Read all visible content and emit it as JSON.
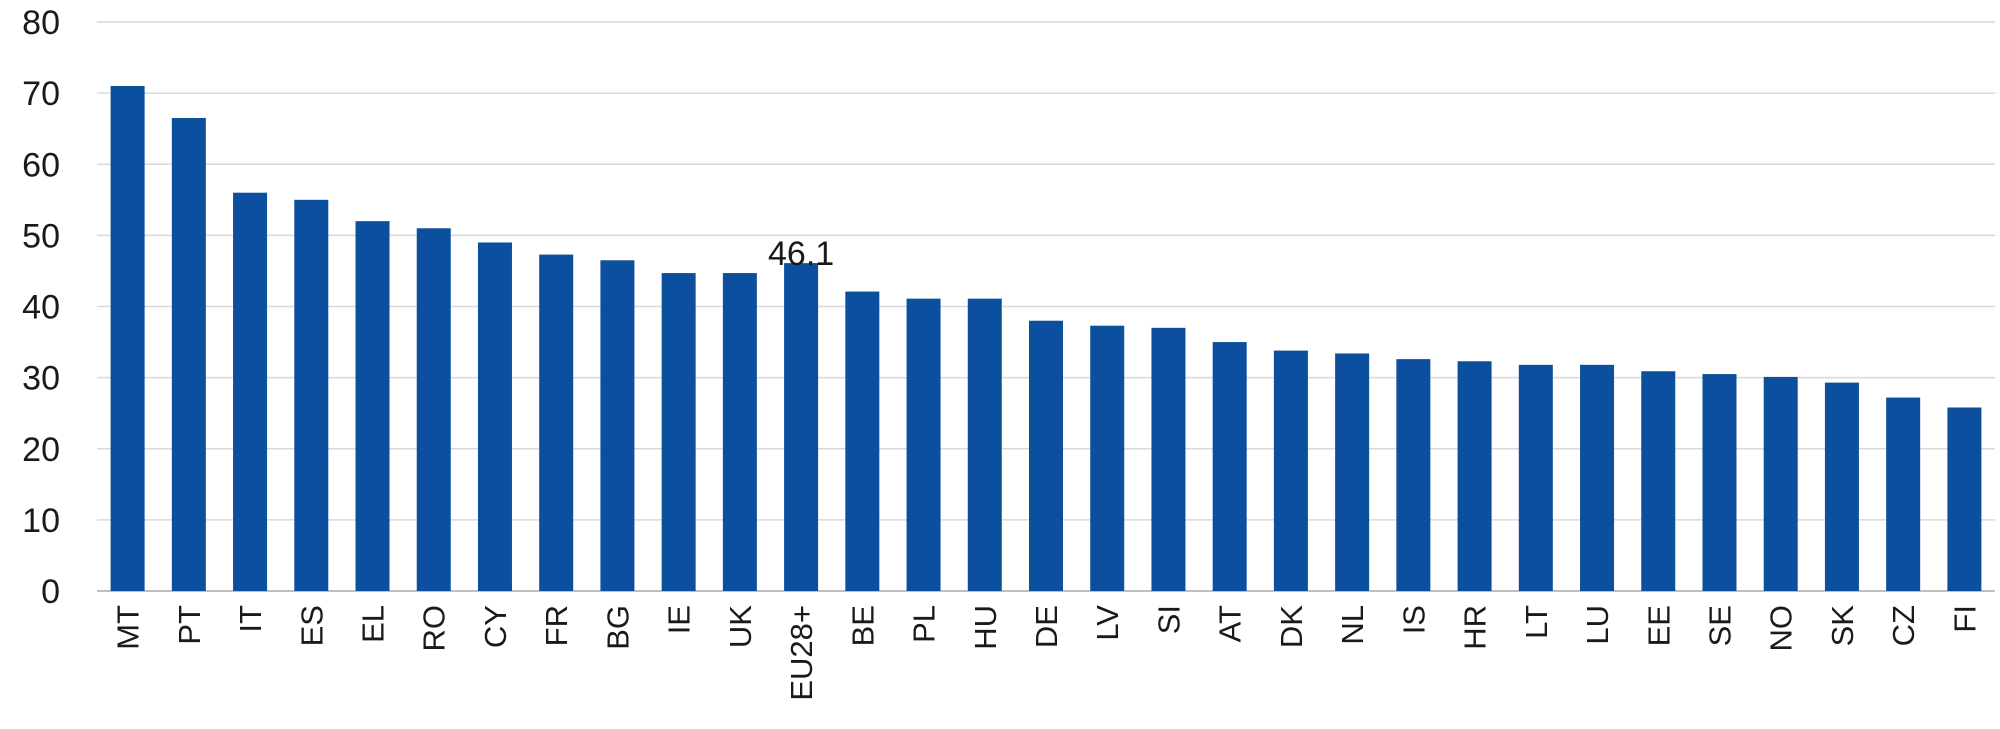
{
  "chart_data": {
    "type": "bar",
    "title": "",
    "xlabel": "",
    "ylabel": "",
    "ylim": [
      0,
      80
    ],
    "yticks": [
      0,
      10,
      20,
      30,
      40,
      50,
      60,
      70,
      80
    ],
    "grid": true,
    "legend": "none",
    "bar_color": "#0b4f9e",
    "categories": [
      "MT",
      "PT",
      "IT",
      "ES",
      "EL",
      "RO",
      "CY",
      "FR",
      "BG",
      "IE",
      "UK",
      "EU28+",
      "BE",
      "PL",
      "HU",
      "DE",
      "LV",
      "SI",
      "AT",
      "DK",
      "NL",
      "IS",
      "HR",
      "LT",
      "LU",
      "EE",
      "SE",
      "NO",
      "SK",
      "CZ",
      "FI"
    ],
    "values": [
      71.0,
      66.5,
      56.0,
      55.0,
      52.0,
      51.0,
      49.0,
      47.3,
      46.5,
      44.7,
      44.7,
      46.1,
      42.1,
      41.1,
      41.1,
      38.0,
      37.3,
      37.0,
      35.0,
      33.8,
      33.4,
      32.6,
      32.3,
      31.8,
      31.8,
      30.9,
      30.5,
      30.1,
      29.3,
      27.2,
      25.8
    ],
    "annotations": [
      {
        "category": "EU28+",
        "text": "46.1"
      }
    ]
  }
}
